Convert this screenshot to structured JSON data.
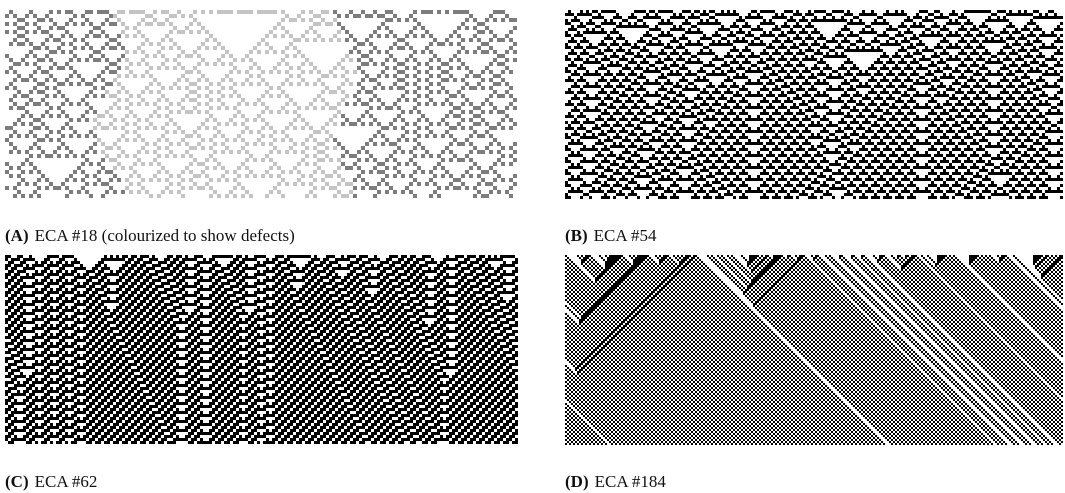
{
  "panels": [
    {
      "label": "(A)",
      "caption": "ECA #18 (colourized to show defects)"
    },
    {
      "label": "(B)",
      "caption": "ECA #54"
    },
    {
      "label": "(C)",
      "caption": "ECA #62"
    },
    {
      "label": "(D)",
      "caption": "ECA #184"
    }
  ]
}
